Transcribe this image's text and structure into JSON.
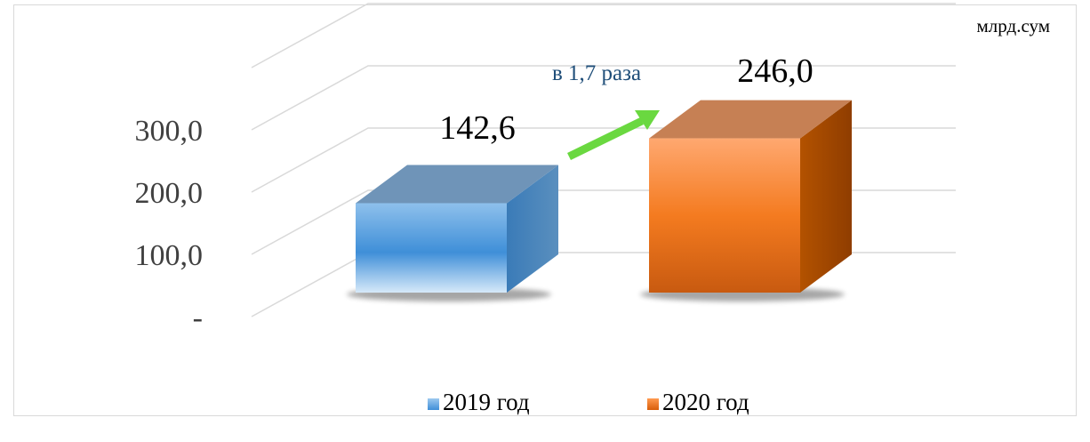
{
  "unit_label": "млрд.сум",
  "annotation": "в 1,7 раза",
  "colors": {
    "series_2019": "#4a90d9",
    "series_2020": "#f47b20",
    "arrow": "#6ad840",
    "grid": "#d9d9d9",
    "annotation": "#1f4e79"
  },
  "chart_data": {
    "type": "bar",
    "categories": [
      "2019 год",
      "2020 год"
    ],
    "series": [
      {
        "name": "2019 год",
        "values": [
          142.6,
          null
        ]
      },
      {
        "name": "2020 год",
        "values": [
          null,
          246.0
        ]
      }
    ],
    "data_labels": [
      "142,6",
      "246,0"
    ],
    "y_ticks": [
      0,
      100,
      200,
      300
    ],
    "y_tick_labels": [
      "-",
      "100,0",
      "200,0",
      "300,0"
    ],
    "ylim": [
      0,
      400
    ],
    "grid": true,
    "legend": "bottom",
    "title": "",
    "xlabel": "",
    "ylabel": "млрд.сум"
  },
  "legend_items": [
    {
      "label": "2019 год"
    },
    {
      "label": "2020 год"
    }
  ]
}
